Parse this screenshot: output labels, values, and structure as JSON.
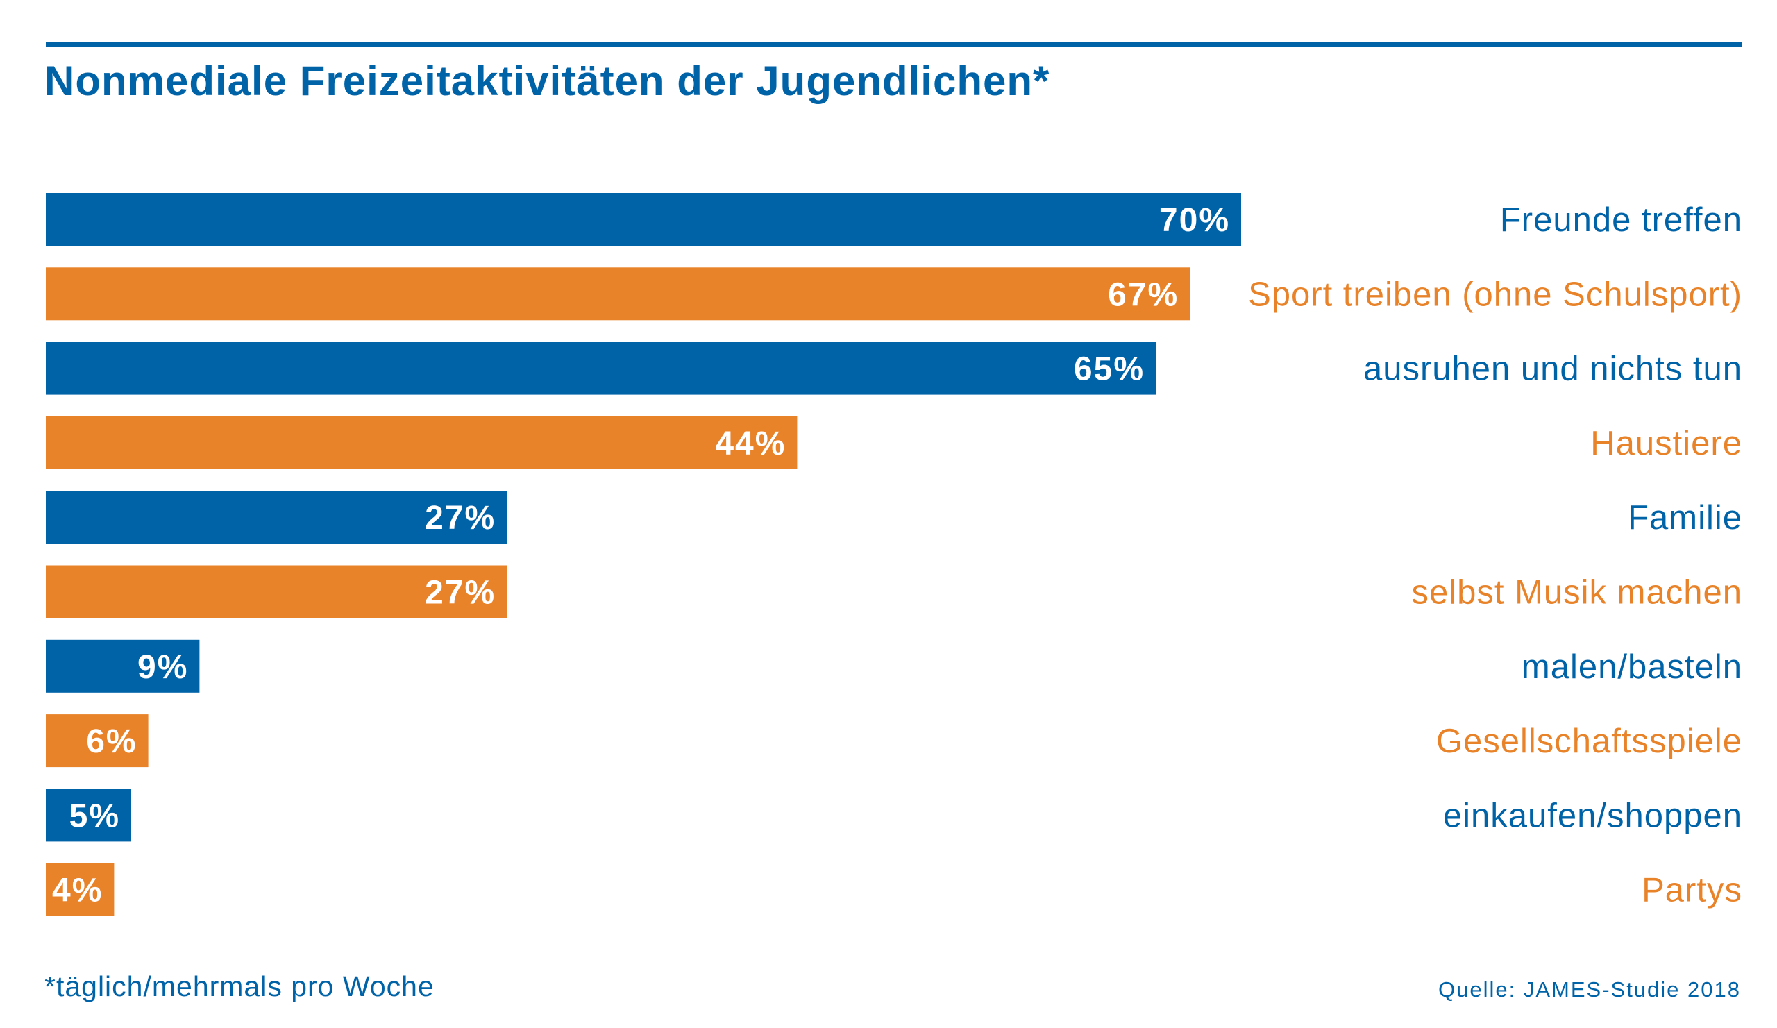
{
  "colors": {
    "blue": "#0063a8",
    "orange": "#e8832a"
  },
  "footnote": "*täglich/mehrmals pro Woche",
  "source": "Quelle: JAMES-Studie 2018",
  "chart_data": {
    "type": "bar",
    "orientation": "horizontal",
    "title": "Nonmediale Freizeitaktivitäten der Jugendlichen*",
    "xlim": [
      0,
      100
    ],
    "grid": false,
    "categories": [
      "Freunde treffen",
      "Sport treiben (ohne Schulsport)",
      "ausruhen und nichts tun",
      "Haustiere",
      "Familie",
      "selbst Musik machen",
      "malen/basteln",
      "Gesellschaftsspiele",
      "einkaufen/shoppen",
      "Partys"
    ],
    "values": [
      70,
      67,
      65,
      44,
      27,
      27,
      9,
      6,
      5,
      4
    ],
    "value_labels": [
      "70%",
      "67%",
      "65%",
      "44%",
      "27%",
      "27%",
      "9%",
      "6%",
      "5%",
      "4%"
    ],
    "bar_colors": [
      "blue",
      "orange",
      "blue",
      "orange",
      "blue",
      "orange",
      "blue",
      "orange",
      "blue",
      "orange"
    ]
  }
}
